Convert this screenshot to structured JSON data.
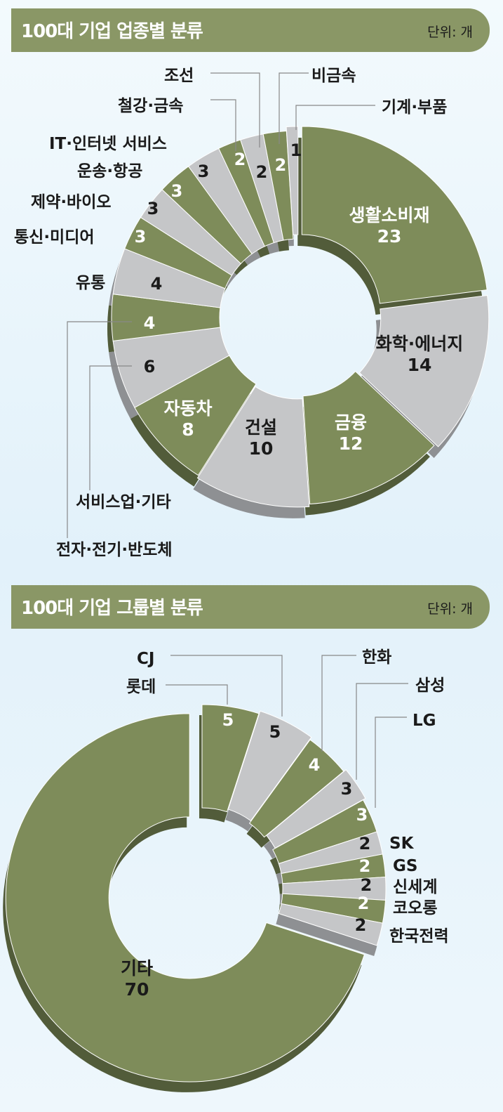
{
  "chart_data": [
    {
      "type": "pie",
      "title": "100대 기업 업종별 분류",
      "unit": "단위: 개",
      "categories": [
        "생활소비재",
        "화학·에너지",
        "금융",
        "건설",
        "자동차",
        "서비스업·기타",
        "전자·전기·반도체",
        "유통",
        "통신·미디어",
        "제약·바이오",
        "운송·항공",
        "IT·인터넷 서비스",
        "철강·금속",
        "조선",
        "비금속",
        "기계·부품"
      ],
      "values": [
        23,
        14,
        12,
        10,
        8,
        6,
        4,
        4,
        3,
        3,
        3,
        3,
        2,
        2,
        2,
        1
      ]
    },
    {
      "type": "pie",
      "title": "100대 기업 그룹별 분류",
      "unit": "단위: 개",
      "categories": [
        "롯데",
        "CJ",
        "한화",
        "삼성",
        "LG",
        "SK",
        "GS",
        "신세계",
        "코오롱",
        "한국전력",
        "기타"
      ],
      "values": [
        5,
        5,
        4,
        3,
        3,
        2,
        2,
        2,
        2,
        2,
        70
      ]
    }
  ],
  "colors": {
    "green": "#7e8c5a",
    "green_side": "#525c3a",
    "gray": "#c5c6c8",
    "gray_side": "#8e9093",
    "header": "#8a9766"
  }
}
